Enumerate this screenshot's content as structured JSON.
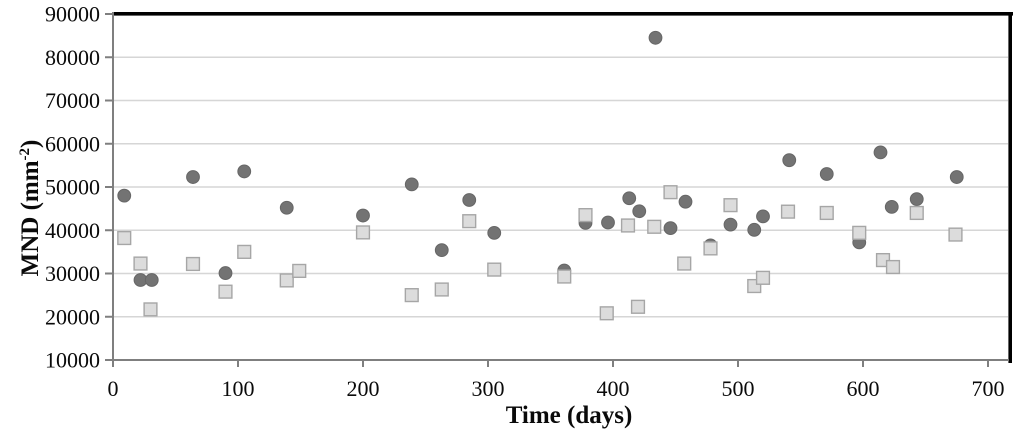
{
  "chart_data": {
    "type": "scatter",
    "title": "",
    "xlabel": "Time (days)",
    "ylabel_main": "MND (mm",
    "ylabel_sup": "-2",
    "ylabel_close": ")",
    "xlim": [
      0,
      718
    ],
    "ylim": [
      10000,
      90000
    ],
    "grid": "horizontal",
    "legend": "none",
    "x_ticks": [
      {
        "value": 0,
        "label": "0"
      },
      {
        "value": 100,
        "label": "100"
      },
      {
        "value": 200,
        "label": "200"
      },
      {
        "value": 300,
        "label": "300"
      },
      {
        "value": 400,
        "label": "400"
      },
      {
        "value": 500,
        "label": "500"
      },
      {
        "value": 600,
        "label": "600"
      },
      {
        "value": 700,
        "label": "700"
      }
    ],
    "y_ticks": [
      {
        "value": 10000,
        "label": "10000"
      },
      {
        "value": 20000,
        "label": "20000"
      },
      {
        "value": 30000,
        "label": "30000"
      },
      {
        "value": 40000,
        "label": "40000"
      },
      {
        "value": 50000,
        "label": "50000"
      },
      {
        "value": 60000,
        "label": "60000"
      },
      {
        "value": 70000,
        "label": "70000"
      },
      {
        "value": 80000,
        "label": "80000"
      },
      {
        "value": 90000,
        "label": "90000"
      }
    ],
    "colors": {
      "circle_fill": "#737373",
      "circle_stroke": "#666666",
      "square_fill": "#dcdcdc",
      "square_stroke": "#a6a6a6",
      "gridline": "#d6d6d6",
      "axis": "#7f7f7f",
      "frame": "#000000",
      "text": "#0a0a0a"
    },
    "series": [
      {
        "name": "circle-series",
        "marker": "circle",
        "points": [
          [
            9,
            48000
          ],
          [
            22,
            28500
          ],
          [
            31,
            28500
          ],
          [
            64,
            52300
          ],
          [
            90,
            30100
          ],
          [
            105,
            53600
          ],
          [
            139,
            45200
          ],
          [
            200,
            43400
          ],
          [
            239,
            50600
          ],
          [
            263,
            35400
          ],
          [
            285,
            47000
          ],
          [
            305,
            39400
          ],
          [
            361,
            30700
          ],
          [
            378,
            41700
          ],
          [
            396,
            41800
          ],
          [
            413,
            47400
          ],
          [
            421,
            44400
          ],
          [
            434,
            84500
          ],
          [
            446,
            40500
          ],
          [
            458,
            46600
          ],
          [
            478,
            36500
          ],
          [
            494,
            41300
          ],
          [
            513,
            40100
          ],
          [
            520,
            43200
          ],
          [
            541,
            56200
          ],
          [
            571,
            53000
          ],
          [
            597,
            37200
          ],
          [
            614,
            58000
          ],
          [
            623,
            45400
          ],
          [
            643,
            47200
          ],
          [
            675,
            52300
          ]
        ]
      },
      {
        "name": "square-series",
        "marker": "square",
        "points": [
          [
            9,
            38200
          ],
          [
            22,
            32300
          ],
          [
            30,
            21700
          ],
          [
            64,
            32200
          ],
          [
            90,
            25800
          ],
          [
            105,
            35000
          ],
          [
            139,
            28400
          ],
          [
            149,
            30600
          ],
          [
            200,
            39500
          ],
          [
            239,
            25000
          ],
          [
            263,
            26300
          ],
          [
            285,
            42100
          ],
          [
            305,
            30900
          ],
          [
            361,
            29300
          ],
          [
            378,
            43500
          ],
          [
            395,
            20800
          ],
          [
            412,
            41100
          ],
          [
            420,
            22300
          ],
          [
            433,
            40800
          ],
          [
            446,
            48800
          ],
          [
            457,
            32300
          ],
          [
            478,
            35800
          ],
          [
            494,
            45800
          ],
          [
            513,
            27100
          ],
          [
            520,
            29000
          ],
          [
            540,
            44300
          ],
          [
            571,
            44000
          ],
          [
            597,
            39400
          ],
          [
            616,
            33100
          ],
          [
            624,
            31500
          ],
          [
            643,
            44000
          ],
          [
            674,
            39000
          ]
        ]
      }
    ]
  }
}
